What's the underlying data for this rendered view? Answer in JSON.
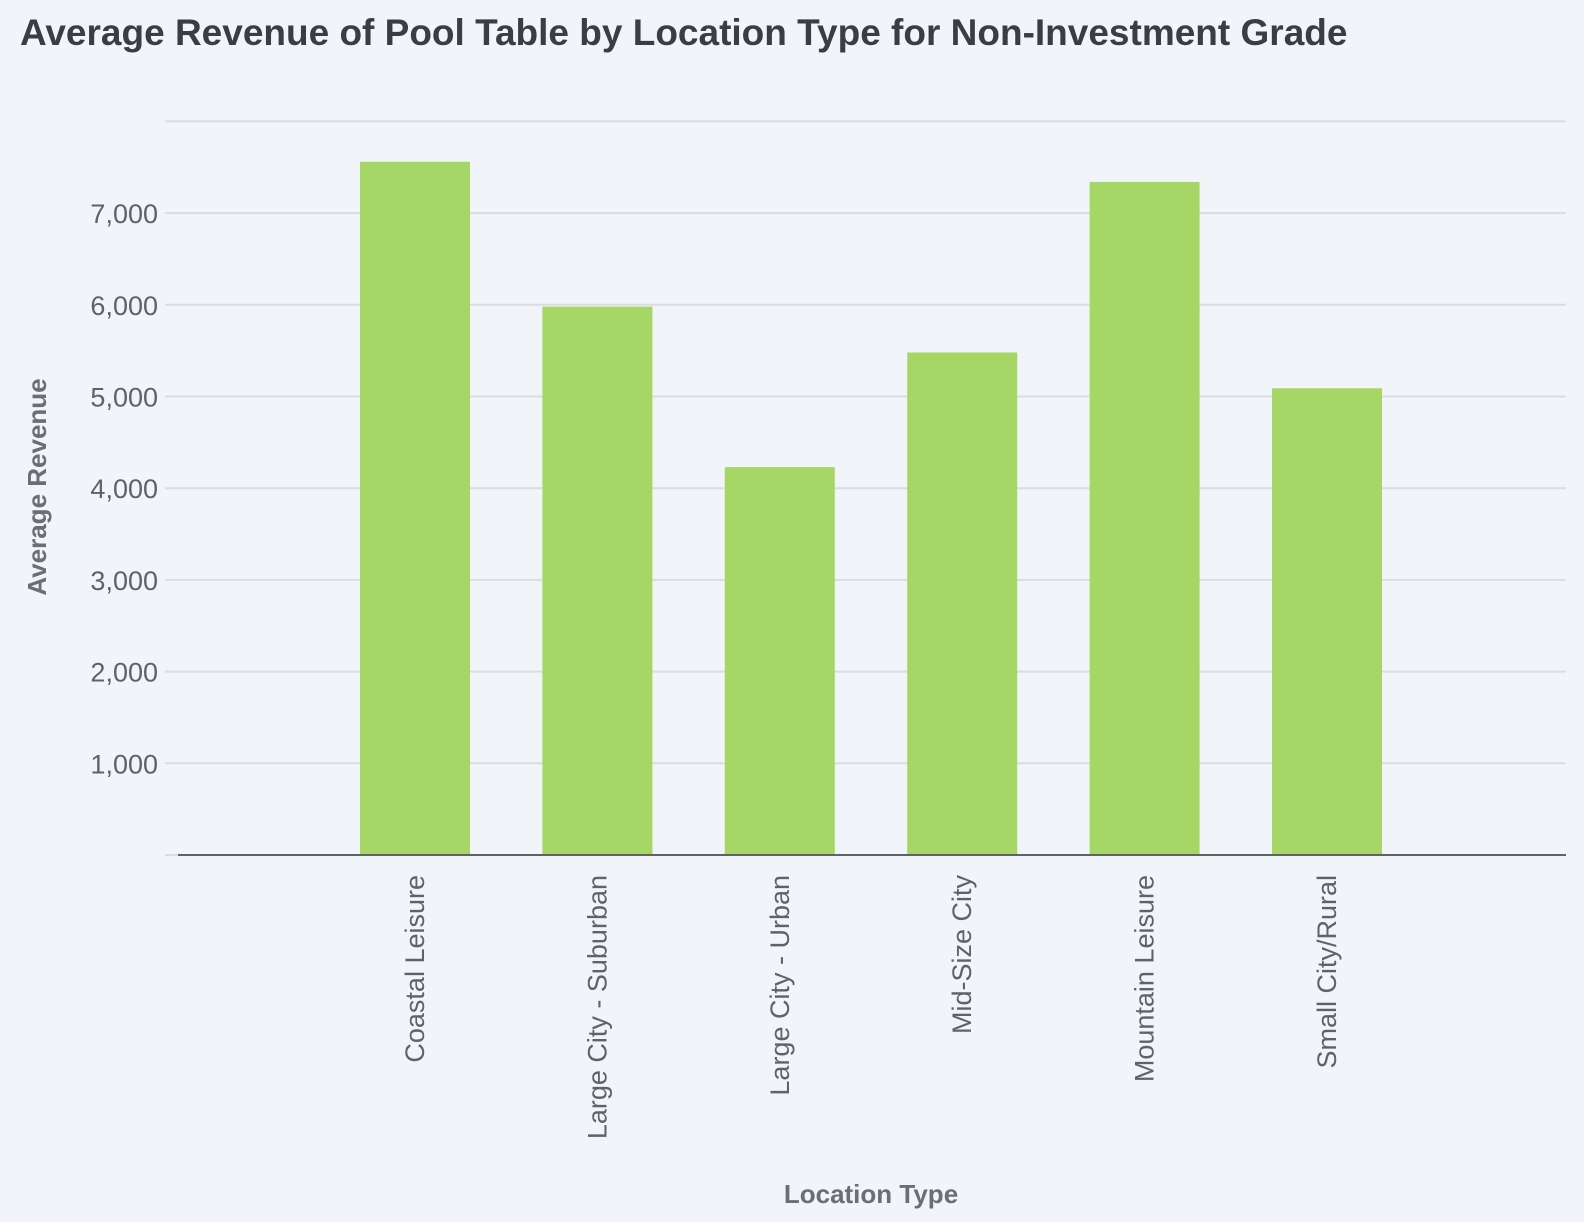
{
  "chart_data": {
    "type": "bar",
    "title": "Average Revenue of Pool Table by Location Type for Non-Investment Grade",
    "xlabel": "Location Type",
    "ylabel": "Average Revenue",
    "categories": [
      "Coastal Leisure",
      "Large City - Suburban",
      "Large City - Urban",
      "Mid-Size City",
      "Mountain Leisure",
      "Small City/Rural"
    ],
    "values": [
      7560,
      5980,
      4230,
      5480,
      7340,
      5090
    ],
    "ylim": [
      0,
      8000
    ],
    "yticks": [
      1000,
      2000,
      3000,
      4000,
      5000,
      6000,
      7000
    ],
    "ytick_labels": [
      "1,000",
      "2,000",
      "3,000",
      "4,000",
      "5,000",
      "6,000",
      "7,000"
    ],
    "grid": true,
    "bar_color": "#a6d766"
  }
}
